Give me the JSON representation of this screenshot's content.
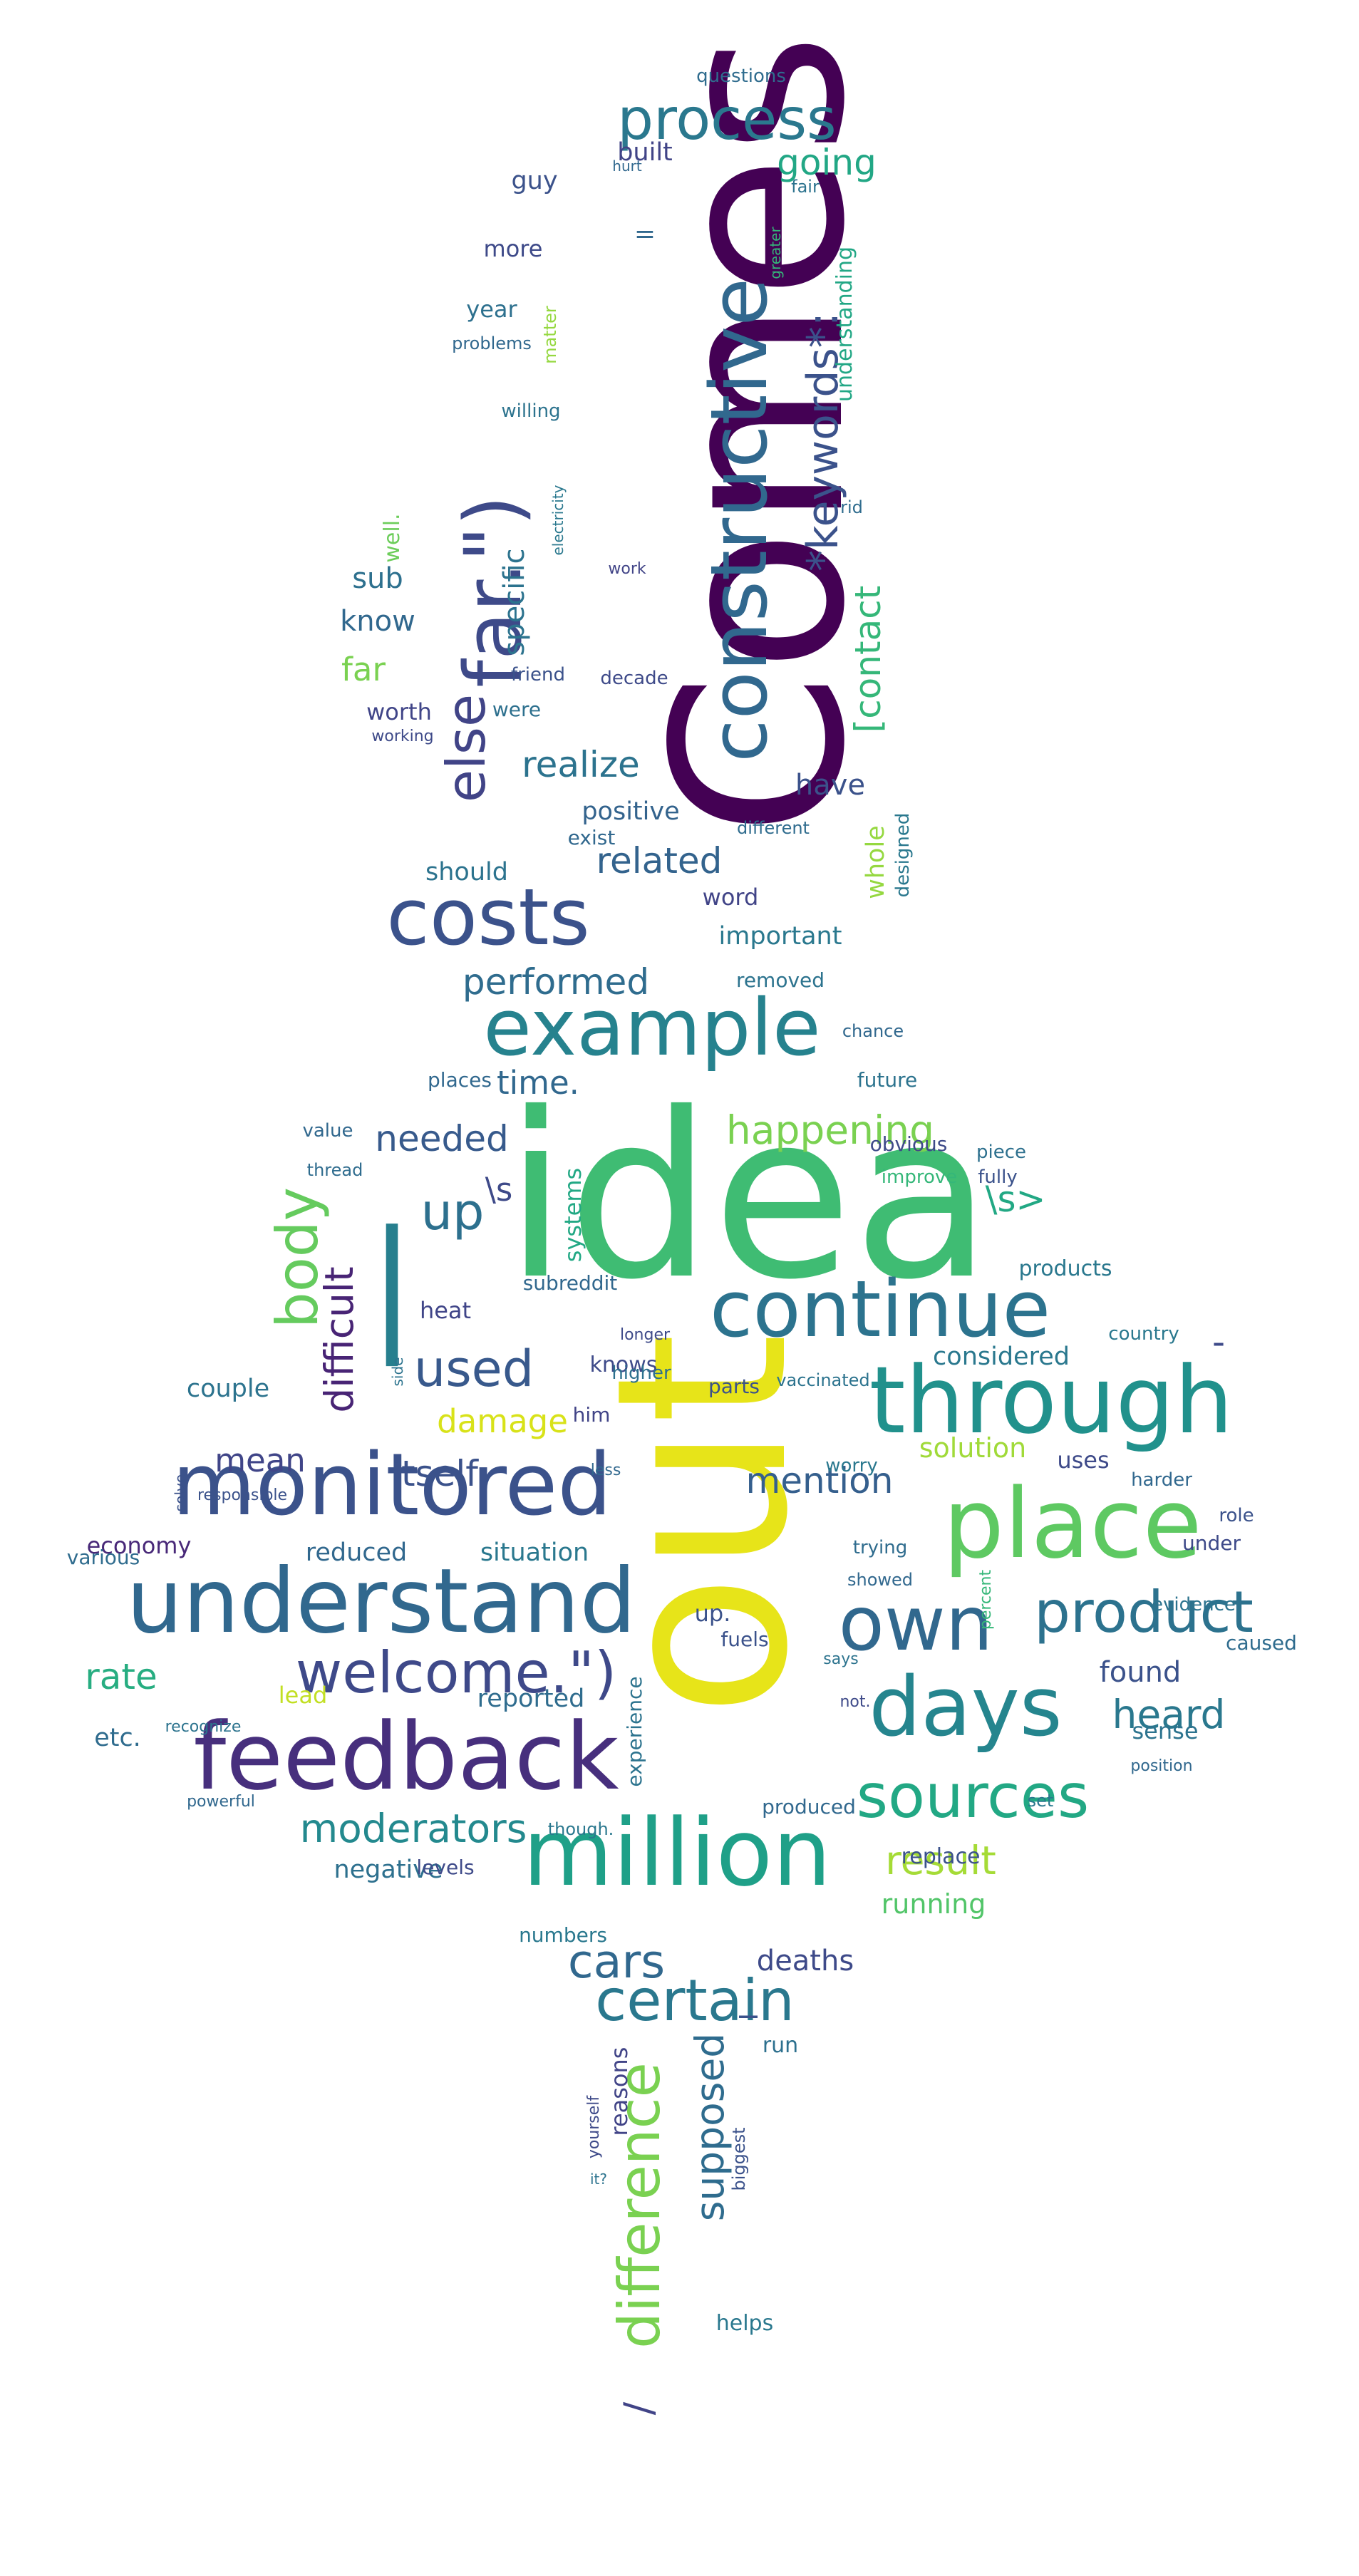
{
  "words": [
    {
      "text": "Comes",
      "color": "#440154"
    },
    {
      "text": "idea",
      "color": "#3fbc73"
    },
    {
      "text": "out",
      "color": "#e7e419"
    },
    {
      "text": "understand",
      "color": "#31688e"
    },
    {
      "text": "monitored",
      "color": "#3b528b"
    },
    {
      "text": "feedback",
      "color": "#472f7d"
    },
    {
      "text": "million",
      "color": "#1fa088"
    },
    {
      "text": "through",
      "color": "#21918c"
    },
    {
      "text": "place",
      "color": "#5ec962"
    },
    {
      "text": "continue",
      "color": "#2c738e"
    },
    {
      "text": "example",
      "color": "#26828e"
    },
    {
      "text": "costs",
      "color": "#3b528b"
    },
    {
      "text": "constructive",
      "color": "#31688e"
    },
    {
      "text": "far.\")",
      "color": "#3e4a89"
    },
    {
      "text": "process",
      "color": "#2a788e"
    },
    {
      "text": "days",
      "color": "#25858e"
    },
    {
      "text": "own",
      "color": "#31688e"
    },
    {
      "text": "product",
      "color": "#2c728e"
    },
    {
      "text": "sources",
      "color": "#22a884"
    },
    {
      "text": "welcome.\")",
      "color": "#3e4989"
    },
    {
      "text": "difference",
      "color": "#7ad151"
    },
    {
      "text": "certain",
      "color": "#2a788e"
    },
    {
      "text": "body",
      "color": "#65cb5e"
    },
    {
      "text": "*keywords*:",
      "color": "#3b528b"
    },
    {
      "text": "else",
      "color": "#414487"
    },
    {
      "text": "|",
      "color": "#277f8e"
    },
    {
      "text": "used",
      "color": "#38598c"
    },
    {
      "text": "cars",
      "color": "#31688e"
    },
    {
      "text": "up",
      "color": "#2d708e"
    },
    {
      "text": "difficult",
      "color": "#482475"
    },
    {
      "text": "happening",
      "color": "#7ad151"
    },
    {
      "text": "moderators",
      "color": "#23898e"
    },
    {
      "text": "itself",
      "color": "#3b528b"
    },
    {
      "text": "mention",
      "color": "#355f8d"
    },
    {
      "text": "heard",
      "color": "#2a788e"
    },
    {
      "text": "result",
      "color": "#a5db36"
    },
    {
      "text": "supposed",
      "color": "#2f6c8e"
    },
    {
      "text": "performed",
      "color": "#2f6c8e"
    },
    {
      "text": "realize",
      "color": "#2c738e"
    },
    {
      "text": "related",
      "color": "#33638d"
    },
    {
      "text": "[contact",
      "color": "#35b779"
    },
    {
      "text": "needed",
      "color": "#375a8c"
    },
    {
      "text": "rate",
      "color": "#27ad81"
    },
    {
      "text": "damage",
      "color": "#d8e219"
    },
    {
      "text": "mean",
      "color": "#404588"
    },
    {
      "text": "time.",
      "color": "#31688e"
    },
    {
      "text": "going",
      "color": "#22a785"
    },
    {
      "text": "positive",
      "color": "#33638d"
    },
    {
      "text": "found",
      "color": "#3b528b"
    },
    {
      "text": "reduced",
      "color": "#31688e"
    },
    {
      "text": "situation",
      "color": "#2a788e"
    },
    {
      "text": "economy",
      "color": "#482878"
    },
    {
      "text": "negative",
      "color": "#2d708e"
    },
    {
      "text": "deaths",
      "color": "#3e4a89"
    },
    {
      "text": "solution",
      "color": "#a0da39"
    },
    {
      "text": "running",
      "color": "#52c569"
    },
    {
      "text": "specific",
      "color": "#2c738e"
    },
    {
      "text": "know",
      "color": "#31688e"
    },
    {
      "text": "far",
      "color": "#7ad151"
    },
    {
      "text": "sub",
      "color": "#2d708e"
    },
    {
      "text": "have",
      "color": "#3b528b"
    },
    {
      "text": "whole",
      "color": "#95d840"
    },
    {
      "text": "knows",
      "color": "#3e4a89"
    },
    {
      "text": "considered",
      "color": "#2a788e"
    },
    {
      "text": "couple",
      "color": "#2c738e"
    },
    {
      "text": "reported",
      "color": "#2f6c8e"
    },
    {
      "text": "built",
      "color": "#414487"
    },
    {
      "text": "guy",
      "color": "#3b528b"
    },
    {
      "text": "more",
      "color": "#3e4a89"
    },
    {
      "text": "year",
      "color": "#2d708e"
    },
    {
      "text": "understanding",
      "color": "#22a785"
    },
    {
      "text": "well.",
      "color": "#6ccd5a"
    },
    {
      "text": "worth",
      "color": "#404588"
    },
    {
      "text": "should",
      "color": "#2c738e"
    },
    {
      "text": "word",
      "color": "#414487"
    },
    {
      "text": "important",
      "color": "#2a788e"
    },
    {
      "text": "uses",
      "color": "#3e4a89"
    },
    {
      "text": "etc.",
      "color": "#2f6c8e"
    },
    {
      "text": "lead",
      "color": "#c2df23"
    },
    {
      "text": "up.",
      "color": "#3b528b"
    },
    {
      "text": "\\s>",
      "color": "#22a884"
    },
    {
      "text": "\\s",
      "color": "#3e4a89"
    },
    {
      "text": "heat",
      "color": "#404588"
    },
    {
      "text": "run",
      "color": "#2d708e"
    },
    {
      "text": "reasons",
      "color": "#414487"
    },
    {
      "text": "produced",
      "color": "#31688e"
    },
    {
      "text": "replace",
      "color": "#3b528b"
    },
    {
      "text": "sense",
      "color": "#2c738e"
    },
    {
      "text": "levels",
      "color": "#3e4a89"
    },
    {
      "text": "numbers",
      "color": "#2a788e"
    },
    {
      "text": "systems",
      "color": "#22a884"
    },
    {
      "text": "experience",
      "color": "#2c738e"
    },
    {
      "text": "yourself",
      "color": "#3e4a89"
    },
    {
      "text": "fuels",
      "color": "#3b528b"
    },
    {
      "text": "caused",
      "color": "#2f6c8e"
    },
    {
      "text": "products",
      "color": "#2a788e"
    },
    {
      "text": "subreddit",
      "color": "#31688e"
    },
    {
      "text": "higher",
      "color": "#2d708e"
    },
    {
      "text": "parts",
      "color": "#3b528b"
    },
    {
      "text": "him",
      "color": "#414487"
    },
    {
      "text": "future",
      "color": "#2c738e"
    },
    {
      "text": "places",
      "color": "#31688e"
    },
    {
      "text": "obvious",
      "color": "#3e4a89"
    },
    {
      "text": "designed",
      "color": "#2a788e"
    },
    {
      "text": "removed",
      "color": "#2c738e"
    },
    {
      "text": "exist",
      "color": "#31688e"
    },
    {
      "text": "different",
      "color": "#2f6c8e"
    },
    {
      "text": "were",
      "color": "#2d708e"
    },
    {
      "text": "decade",
      "color": "#3e4a89"
    },
    {
      "text": "friend",
      "color": "#3b528b"
    },
    {
      "text": "problems",
      "color": "#31688e"
    },
    {
      "text": "willing",
      "color": "#2c738e"
    },
    {
      "text": "matter",
      "color": "#95d840"
    },
    {
      "text": "questions",
      "color": "#2f6c8e"
    },
    {
      "text": "fair",
      "color": "#2c738e"
    },
    {
      "text": "hurt",
      "color": "#31688e"
    },
    {
      "text": "rid",
      "color": "#2f6c8e"
    },
    {
      "text": "electricity",
      "color": "#2a788e"
    },
    {
      "text": "work",
      "color": "#414487"
    },
    {
      "text": "working",
      "color": "#3e4a89"
    },
    {
      "text": "greater",
      "color": "#35b779"
    },
    {
      "text": "helps",
      "color": "#2a788e"
    },
    {
      "text": "biggest",
      "color": "#3b528b"
    },
    {
      "text": "vaccinated",
      "color": "#2c738e"
    },
    {
      "text": "value",
      "color": "#31688e"
    },
    {
      "text": "thread",
      "color": "#2f6c8e"
    },
    {
      "text": "improve",
      "color": "#35b779"
    },
    {
      "text": "piece",
      "color": "#2d708e"
    },
    {
      "text": "fully",
      "color": "#3b528b"
    },
    {
      "text": "chance",
      "color": "#31688e"
    },
    {
      "text": "country",
      "color": "#2a788e"
    },
    {
      "text": "evidence",
      "color": "#2c738e"
    },
    {
      "text": "under",
      "color": "#3e4a89"
    },
    {
      "text": "role",
      "color": "#3b528b"
    },
    {
      "text": "harder",
      "color": "#31688e"
    },
    {
      "text": "worry",
      "color": "#2a788e"
    },
    {
      "text": "trying",
      "color": "#2f6c8e"
    },
    {
      "text": "showed",
      "color": "#31688e"
    },
    {
      "text": "percent",
      "color": "#35b779"
    },
    {
      "text": "says",
      "color": "#2c738e"
    },
    {
      "text": "not.",
      "color": "#3e4a89"
    },
    {
      "text": "set",
      "color": "#2a788e"
    },
    {
      "text": "position",
      "color": "#31688e"
    },
    {
      "text": "various",
      "color": "#2f6c8e"
    },
    {
      "text": "responsible",
      "color": "#3b528b"
    },
    {
      "text": "recognize",
      "color": "#2c738e"
    },
    {
      "text": "powerful",
      "color": "#31688e"
    },
    {
      "text": "though.",
      "color": "#2a788e"
    },
    {
      "text": "longer",
      "color": "#3e4a89"
    },
    {
      "text": "less",
      "color": "#31688e"
    },
    {
      "text": "it?",
      "color": "#2c738e"
    },
    {
      "text": "solve",
      "color": "#3b528b"
    },
    {
      "text": "side",
      "color": "#2c738e"
    },
    {
      "text": "=",
      "color": "#31688e"
    },
    {
      "text": "_",
      "color": "#3b528b"
    },
    {
      "text": "-",
      "color": "#3e4a89"
    },
    {
      "text": "/",
      "color": "#414487"
    }
  ]
}
